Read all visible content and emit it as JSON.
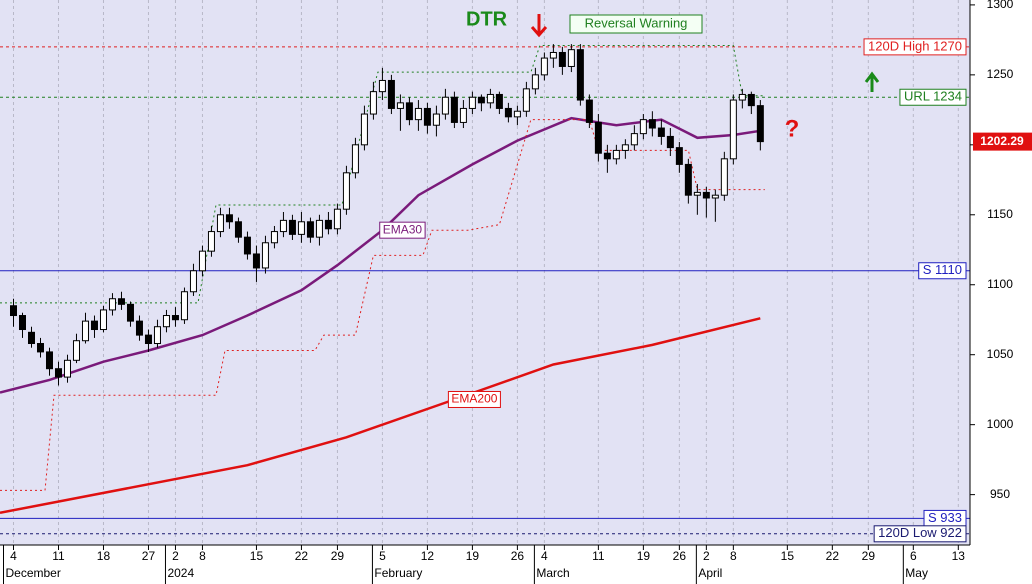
{
  "chart_data": {
    "type": "candlestick",
    "x_format": "trading-day index",
    "xlim": [
      -1.5,
      106.3
    ],
    "ylim": [
      914,
      1303.5
    ],
    "yticks": [
      950,
      1000,
      1050,
      1100,
      1150,
      1200,
      1250,
      1300
    ],
    "xticks": [
      {
        "value": 0,
        "label": "4"
      },
      {
        "value": 5,
        "label": "11"
      },
      {
        "value": 10,
        "label": "18"
      },
      {
        "value": 15,
        "label": "27"
      },
      {
        "value": 18,
        "label": "2"
      },
      {
        "value": 21,
        "label": "8"
      },
      {
        "value": 27,
        "label": "15"
      },
      {
        "value": 32,
        "label": "22"
      },
      {
        "value": 36,
        "label": "29"
      },
      {
        "value": 41,
        "label": "5"
      },
      {
        "value": 46,
        "label": "12"
      },
      {
        "value": 51,
        "label": "19"
      },
      {
        "value": 56,
        "label": "26"
      },
      {
        "value": 59,
        "label": "4"
      },
      {
        "value": 65,
        "label": "11"
      },
      {
        "value": 70,
        "label": "19"
      },
      {
        "value": 74,
        "label": "26"
      },
      {
        "value": 77,
        "label": "2"
      },
      {
        "value": 80,
        "label": "8"
      },
      {
        "value": 86,
        "label": "15"
      },
      {
        "value": 91,
        "label": "22"
      },
      {
        "value": 95,
        "label": "29"
      },
      {
        "value": 100,
        "label": "6"
      },
      {
        "value": 105,
        "label": "13"
      }
    ],
    "months": [
      {
        "value": 0,
        "label": "December"
      },
      {
        "value": 18,
        "label": "2024"
      },
      {
        "value": 41,
        "label": "February"
      },
      {
        "value": 59,
        "label": "March"
      },
      {
        "value": 77,
        "label": "April"
      },
      {
        "value": 100,
        "label": "May"
      }
    ],
    "grid": true,
    "candles": [
      [
        1085,
        1090,
        1070,
        1078
      ],
      [
        1078,
        1080,
        1062,
        1068
      ],
      [
        1066,
        1070,
        1055,
        1058
      ],
      [
        1058,
        1062,
        1048,
        1052
      ],
      [
        1052,
        1055,
        1035,
        1040
      ],
      [
        1040,
        1045,
        1028,
        1034
      ],
      [
        1034,
        1050,
        1030,
        1046
      ],
      [
        1046,
        1065,
        1044,
        1060
      ],
      [
        1060,
        1080,
        1058,
        1074
      ],
      [
        1074,
        1078,
        1062,
        1068
      ],
      [
        1068,
        1085,
        1066,
        1082
      ],
      [
        1082,
        1094,
        1078,
        1090
      ],
      [
        1090,
        1095,
        1082,
        1086
      ],
      [
        1086,
        1088,
        1070,
        1074
      ],
      [
        1074,
        1078,
        1060,
        1064
      ],
      [
        1064,
        1068,
        1052,
        1058
      ],
      [
        1058,
        1075,
        1055,
        1070
      ],
      [
        1070,
        1082,
        1066,
        1078
      ],
      [
        1078,
        1084,
        1070,
        1075
      ],
      [
        1075,
        1098,
        1072,
        1095
      ],
      [
        1095,
        1115,
        1092,
        1110
      ],
      [
        1110,
        1128,
        1106,
        1124
      ],
      [
        1124,
        1142,
        1120,
        1138
      ],
      [
        1138,
        1155,
        1134,
        1150
      ],
      [
        1150,
        1155,
        1140,
        1145
      ],
      [
        1145,
        1148,
        1130,
        1134
      ],
      [
        1134,
        1138,
        1118,
        1122
      ],
      [
        1122,
        1128,
        1102,
        1112
      ],
      [
        1112,
        1135,
        1108,
        1130
      ],
      [
        1130,
        1142,
        1126,
        1138
      ],
      [
        1138,
        1152,
        1134,
        1146
      ],
      [
        1146,
        1150,
        1132,
        1136
      ],
      [
        1136,
        1152,
        1130,
        1145
      ],
      [
        1145,
        1148,
        1130,
        1134
      ],
      [
        1134,
        1150,
        1128,
        1146
      ],
      [
        1146,
        1152,
        1136,
        1140
      ],
      [
        1140,
        1158,
        1136,
        1154
      ],
      [
        1154,
        1185,
        1150,
        1180
      ],
      [
        1180,
        1205,
        1176,
        1200
      ],
      [
        1200,
        1228,
        1196,
        1222
      ],
      [
        1222,
        1245,
        1218,
        1238
      ],
      [
        1238,
        1255,
        1232,
        1246
      ],
      [
        1246,
        1250,
        1222,
        1226
      ],
      [
        1226,
        1236,
        1210,
        1230
      ],
      [
        1230,
        1234,
        1214,
        1218
      ],
      [
        1218,
        1232,
        1210,
        1226
      ],
      [
        1226,
        1230,
        1208,
        1214
      ],
      [
        1214,
        1228,
        1206,
        1222
      ],
      [
        1222,
        1240,
        1218,
        1234
      ],
      [
        1234,
        1238,
        1212,
        1216
      ],
      [
        1216,
        1232,
        1212,
        1226
      ],
      [
        1226,
        1238,
        1222,
        1234
      ],
      [
        1234,
        1236,
        1224,
        1230
      ],
      [
        1230,
        1240,
        1226,
        1236
      ],
      [
        1236,
        1238,
        1222,
        1226
      ],
      [
        1226,
        1230,
        1216,
        1220
      ],
      [
        1220,
        1228,
        1214,
        1224
      ],
      [
        1224,
        1245,
        1220,
        1240
      ],
      [
        1240,
        1255,
        1236,
        1250
      ],
      [
        1250,
        1266,
        1246,
        1262
      ],
      [
        1262,
        1272,
        1255,
        1266
      ],
      [
        1266,
        1270,
        1250,
        1256
      ],
      [
        1256,
        1272,
        1252,
        1268
      ],
      [
        1268,
        1272,
        1228,
        1232
      ],
      [
        1232,
        1236,
        1212,
        1216
      ],
      [
        1216,
        1222,
        1188,
        1194
      ],
      [
        1194,
        1200,
        1180,
        1190
      ],
      [
        1190,
        1200,
        1186,
        1196
      ],
      [
        1196,
        1204,
        1190,
        1200
      ],
      [
        1200,
        1214,
        1196,
        1208
      ],
      [
        1208,
        1222,
        1204,
        1218
      ],
      [
        1218,
        1224,
        1206,
        1212
      ],
      [
        1212,
        1218,
        1200,
        1206
      ],
      [
        1206,
        1212,
        1192,
        1198
      ],
      [
        1198,
        1202,
        1180,
        1186
      ],
      [
        1186,
        1190,
        1158,
        1164
      ],
      [
        1164,
        1172,
        1150,
        1166
      ],
      [
        1166,
        1170,
        1148,
        1162
      ],
      [
        1162,
        1168,
        1145,
        1164
      ],
      [
        1164,
        1195,
        1160,
        1190
      ],
      [
        1190,
        1236,
        1186,
        1232
      ],
      [
        1232,
        1240,
        1226,
        1236
      ],
      [
        1236,
        1238,
        1222,
        1228
      ],
      [
        1228,
        1232,
        1196,
        1202.29
      ]
    ],
    "series": [
      {
        "name": "EMA30",
        "color": "#7a1a7a",
        "x": [
          -1.5,
          4,
          10,
          15,
          21,
          26,
          32,
          36,
          41,
          45,
          51,
          56,
          62,
          67,
          72,
          76,
          80,
          83
        ],
        "values": [
          1023,
          1032,
          1045,
          1053,
          1064,
          1078,
          1096,
          1114,
          1139,
          1164,
          1186,
          1203,
          1219,
          1214,
          1218,
          1205,
          1207,
          1210
        ]
      },
      {
        "name": "EMA200",
        "color": "#e01010",
        "x": [
          -1.5,
          26,
          37,
          49,
          60,
          71,
          83
        ],
        "values": [
          937,
          971,
          991,
          1018,
          1043,
          1057,
          1076
        ]
      },
      {
        "color": "#e02020",
        "dashed": true,
        "x": [
          -1.5,
          3.5,
          4.5,
          22.5,
          23.5,
          33.5,
          34.5,
          38,
          40,
          45.5,
          46.5,
          50.5,
          54,
          57.5,
          58.5,
          64,
          65,
          75,
          76,
          83.5
        ],
        "values": [
          953,
          953,
          1021,
          1021,
          1053,
          1053,
          1064,
          1064,
          1121,
          1121,
          1139,
          1139,
          1143,
          1218,
          1218,
          1218,
          1196,
          1196,
          1168,
          1168
        ]
      },
      {
        "color": "#208020",
        "dashed": true,
        "x": [
          -1.5,
          20.5,
          22.5,
          36.5,
          40.5,
          57.5,
          58.5,
          80,
          81,
          83.5
        ],
        "values": [
          1087,
          1087,
          1157,
          1157,
          1252,
          1252,
          1271,
          1271,
          1235,
          1235
        ]
      }
    ],
    "levels": [
      {
        "label": "120D High 1270",
        "value": 1270,
        "color": "#e02020",
        "dashed": true
      },
      {
        "label": "URL 1234",
        "value": 1234,
        "color": "#208020",
        "dashed": true
      },
      {
        "label": "S 1110",
        "value": 1110,
        "color": "#2020c0",
        "dashed": false
      },
      {
        "label": "S 933",
        "value": 933,
        "color": "#2020c0",
        "dashed": false
      },
      {
        "label": "120D Low 922",
        "value": 922,
        "color": "#1a1a70",
        "dashed": true
      }
    ],
    "last_price": 1202.29,
    "annotations": {
      "dtr": "DTR",
      "reversal": "Reversal Warning",
      "question": "?"
    }
  }
}
